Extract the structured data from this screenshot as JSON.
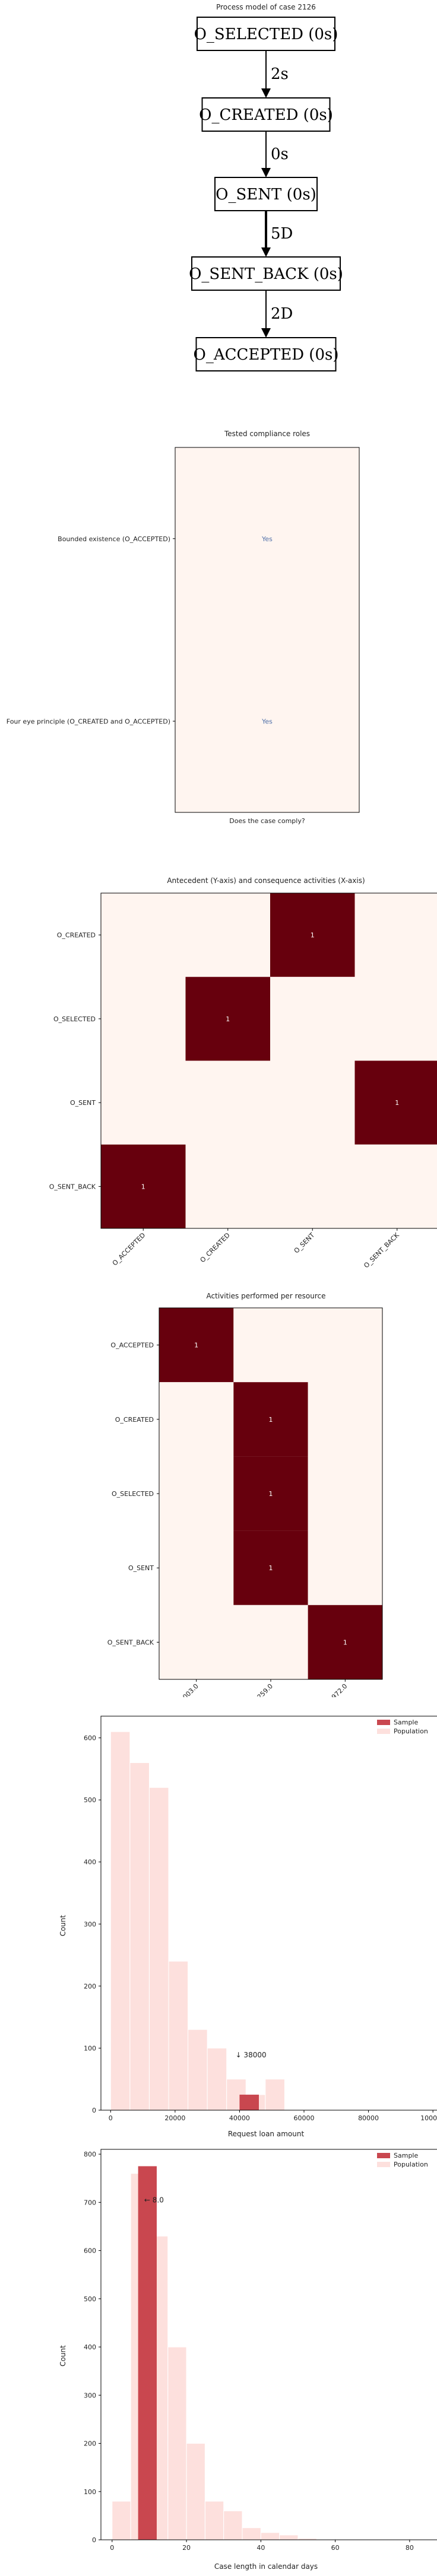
{
  "process_model": {
    "title": "Process model of case 2126",
    "nodes": [
      "O_SELECTED (0s)",
      "O_CREATED (0s)",
      "O_SENT (0s)",
      "O_SENT_BACK (0s)",
      "O_ACCEPTED (0s)"
    ],
    "edges": [
      {
        "from": 0,
        "to": 1,
        "label": "2s",
        "weight": 1
      },
      {
        "from": 1,
        "to": 2,
        "label": "0s",
        "weight": 1
      },
      {
        "from": 2,
        "to": 3,
        "label": "5D",
        "weight": 2
      },
      {
        "from": 3,
        "to": 4,
        "label": "2D",
        "weight": 1
      }
    ]
  },
  "chart_data": [
    {
      "type": "heatmap",
      "title": "Tested compliance roles",
      "xlabel": "Does the case comply?",
      "rows": [
        "Bounded existence (O_ACCEPTED)",
        "Four eye principle (O_CREATED and O_ACCEPTED)"
      ],
      "cells": [
        "Yes",
        "Yes"
      ],
      "colors": {
        "background": "#fff5f0",
        "label": "#4f6fa8"
      }
    },
    {
      "type": "heatmap",
      "title": "Antecedent (Y-axis) and consequence activities (X-axis)",
      "rows": [
        "O_CREATED",
        "O_SELECTED",
        "O_SENT",
        "O_SENT_BACK"
      ],
      "columns": [
        "O_ACCEPTED",
        "O_CREATED",
        "O_SENT",
        "O_SENT_BACK"
      ],
      "values": [
        [
          0,
          0,
          1,
          0
        ],
        [
          0,
          1,
          0,
          0
        ],
        [
          0,
          0,
          0,
          1
        ],
        [
          1,
          0,
          0,
          0
        ]
      ],
      "colors": {
        "low": "#fff5f0",
        "high": "#67000d"
      }
    },
    {
      "type": "heatmap",
      "title": "Activities performed per resource",
      "rows": [
        "O_ACCEPTED",
        "O_CREATED",
        "O_SELECTED",
        "O_SENT",
        "O_SENT_BACK"
      ],
      "columns": [
        "11003.0",
        "11259.0",
        "10972.0"
      ],
      "values": [
        [
          1,
          0,
          0
        ],
        [
          0,
          1,
          0
        ],
        [
          0,
          1,
          0
        ],
        [
          0,
          1,
          0
        ],
        [
          0,
          0,
          1
        ]
      ],
      "colors": {
        "low": "#fff5f0",
        "high": "#67000d"
      }
    },
    {
      "type": "bar",
      "xlabel": "Request loan amount",
      "ylabel": "Count",
      "xlim": [
        -3000,
        102000
      ],
      "ylim": [
        0,
        635
      ],
      "xticks": [
        0,
        20000,
        40000,
        60000,
        80000,
        100000
      ],
      "yticks": [
        0,
        100,
        200,
        300,
        400,
        500,
        600
      ],
      "bin_width": 6000,
      "legend": {
        "position": "top-right",
        "entries": [
          "Sample",
          "Population"
        ]
      },
      "series": [
        {
          "name": "Population",
          "color": "#fde0dd",
          "bins": [
            [
              0,
              610
            ],
            [
              6000,
              560
            ],
            [
              12000,
              520
            ],
            [
              18000,
              240
            ],
            [
              24000,
              130
            ],
            [
              30000,
              100
            ],
            [
              36000,
              50
            ],
            [
              42000,
              25
            ],
            [
              48000,
              50
            ]
          ]
        },
        {
          "name": "Sample",
          "color": "#c9474f",
          "bins": [
            [
              40000,
              25
            ]
          ]
        }
      ],
      "annotation": {
        "text": "↓ 38000",
        "x": 38000,
        "y": 85
      }
    },
    {
      "type": "bar",
      "xlabel": "Case length in calendar days",
      "ylabel": "Count",
      "xlim": [
        -3,
        88
      ],
      "ylim": [
        0,
        810
      ],
      "xticks": [
        0,
        20,
        40,
        60,
        80
      ],
      "yticks": [
        0,
        100,
        200,
        300,
        400,
        500,
        600,
        700,
        800
      ],
      "bin_width": 5,
      "legend": {
        "position": "top-right",
        "entries": [
          "Sample",
          "Population"
        ]
      },
      "series": [
        {
          "name": "Population",
          "color": "#fde0dd",
          "bins": [
            [
              0,
              80
            ],
            [
              5,
              760
            ],
            [
              10,
              630
            ],
            [
              15,
              400
            ],
            [
              20,
              200
            ],
            [
              25,
              80
            ],
            [
              30,
              60
            ],
            [
              35,
              25
            ],
            [
              40,
              15
            ],
            [
              45,
              10
            ],
            [
              50,
              3
            ],
            [
              55,
              1
            ],
            [
              60,
              1
            ],
            [
              65,
              1
            ]
          ]
        },
        {
          "name": "Sample",
          "color": "#c9474f",
          "bins": [
            [
              7,
              775
            ]
          ]
        }
      ],
      "annotation": {
        "text": "← 8.0",
        "x": 8,
        "y": 700
      }
    }
  ]
}
